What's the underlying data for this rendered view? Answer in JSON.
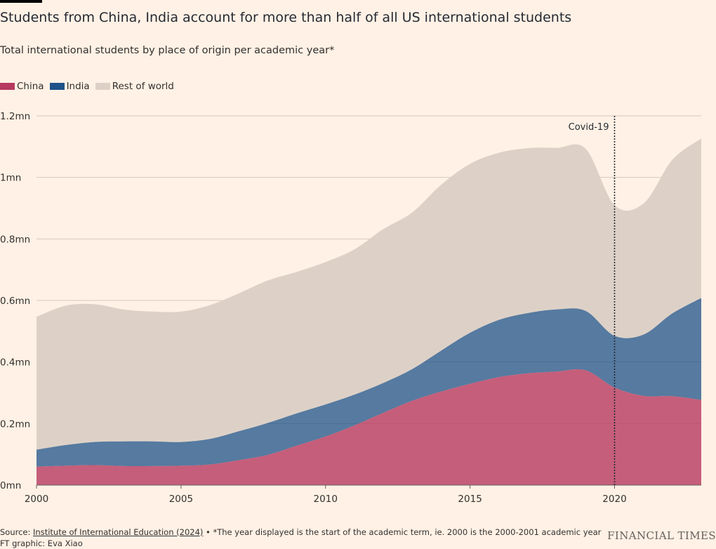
{
  "header": {
    "title": "Students from China, India account for more than half of all US international students",
    "subtitle": "Total international students by place of origin per academic year*"
  },
  "legend": [
    {
      "label": "China",
      "color": "#B6395F"
    },
    {
      "label": "India",
      "color": "#1E5288"
    },
    {
      "label": "Rest of world",
      "color": "#DDD1C7"
    }
  ],
  "chart_data": {
    "type": "area",
    "stacked": true,
    "x": [
      2000,
      2001,
      2002,
      2003,
      2004,
      2005,
      2006,
      2007,
      2008,
      2009,
      2010,
      2011,
      2012,
      2013,
      2014,
      2015,
      2016,
      2017,
      2018,
      2019,
      2020,
      2021,
      2022,
      2023
    ],
    "series": [
      {
        "name": "China",
        "color": "#B6395F",
        "values": [
          0.06,
          0.063,
          0.065,
          0.062,
          0.062,
          0.063,
          0.067,
          0.081,
          0.098,
          0.128,
          0.158,
          0.194,
          0.235,
          0.274,
          0.304,
          0.329,
          0.351,
          0.363,
          0.369,
          0.373,
          0.317,
          0.29,
          0.289,
          0.277
        ]
      },
      {
        "name": "India",
        "color": "#1E5288",
        "values": [
          0.055,
          0.067,
          0.075,
          0.08,
          0.08,
          0.077,
          0.083,
          0.094,
          0.104,
          0.105,
          0.104,
          0.1,
          0.097,
          0.103,
          0.133,
          0.166,
          0.186,
          0.196,
          0.202,
          0.193,
          0.168,
          0.199,
          0.269,
          0.331
        ]
      },
      {
        "name": "Rest of world",
        "color": "#DDD1C7",
        "values": [
          0.432,
          0.453,
          0.448,
          0.429,
          0.422,
          0.424,
          0.435,
          0.448,
          0.463,
          0.46,
          0.463,
          0.472,
          0.5,
          0.509,
          0.539,
          0.549,
          0.543,
          0.536,
          0.525,
          0.527,
          0.425,
          0.426,
          0.499,
          0.518
        ]
      }
    ],
    "xticks": [
      2000,
      2005,
      2010,
      2015,
      2020
    ],
    "xtick_labels": [
      "2000",
      "2005",
      "2010",
      "2015",
      "2020"
    ],
    "yticks": [
      0,
      0.2,
      0.4,
      0.6,
      0.8,
      1.0,
      1.2
    ],
    "ytick_labels": [
      "0mn",
      "0.2mn",
      "0.4mn",
      "0.6mn",
      "0.8mn",
      "1mn",
      "1.2mn"
    ],
    "xlim": [
      2000,
      2023
    ],
    "ylim": [
      0,
      1.2
    ],
    "grid": "horizontal",
    "annotations": [
      {
        "x": 2020,
        "label": "Covid-19",
        "style": "dotted-vertical-line"
      }
    ]
  },
  "footer": {
    "source_prefix": "Source: ",
    "source_link": "Institute of International Education (2024)",
    "source_note": " • *The year displayed is the start of the academic term, ie. 2000 is the 2000-2001 academic year",
    "credit": "FT graphic: Eva Xiao",
    "brand": "FINANCIAL TIMES"
  }
}
